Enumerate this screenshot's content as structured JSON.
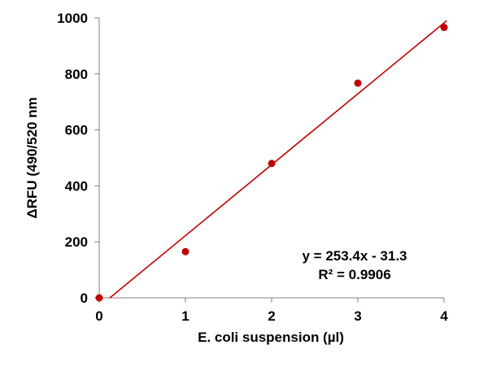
{
  "chart_data": {
    "type": "scatter",
    "title": "",
    "xlabel": "E. coli suspension (µl)",
    "ylabel": "ΔRFU (490/520 nm",
    "xlim": [
      0,
      4
    ],
    "ylim": [
      0,
      1000
    ],
    "x_ticks": [
      "0",
      "1",
      "2",
      "3",
      "4"
    ],
    "y_ticks": [
      "0",
      "200",
      "400",
      "600",
      "800",
      "1000"
    ],
    "grid": false,
    "legend": "none",
    "series": [
      {
        "x": [
          0,
          1,
          2,
          3,
          4
        ],
        "y": [
          0,
          165,
          480,
          767,
          966
        ],
        "color": "#c00000"
      }
    ],
    "trendline": {
      "type": "linear",
      "slope": 253.4,
      "intercept": -31.3,
      "color": "#c00000"
    },
    "annotations": {
      "equation": "y = 253.4x - 31.3",
      "r_squared": "R² = 0.9906"
    }
  }
}
